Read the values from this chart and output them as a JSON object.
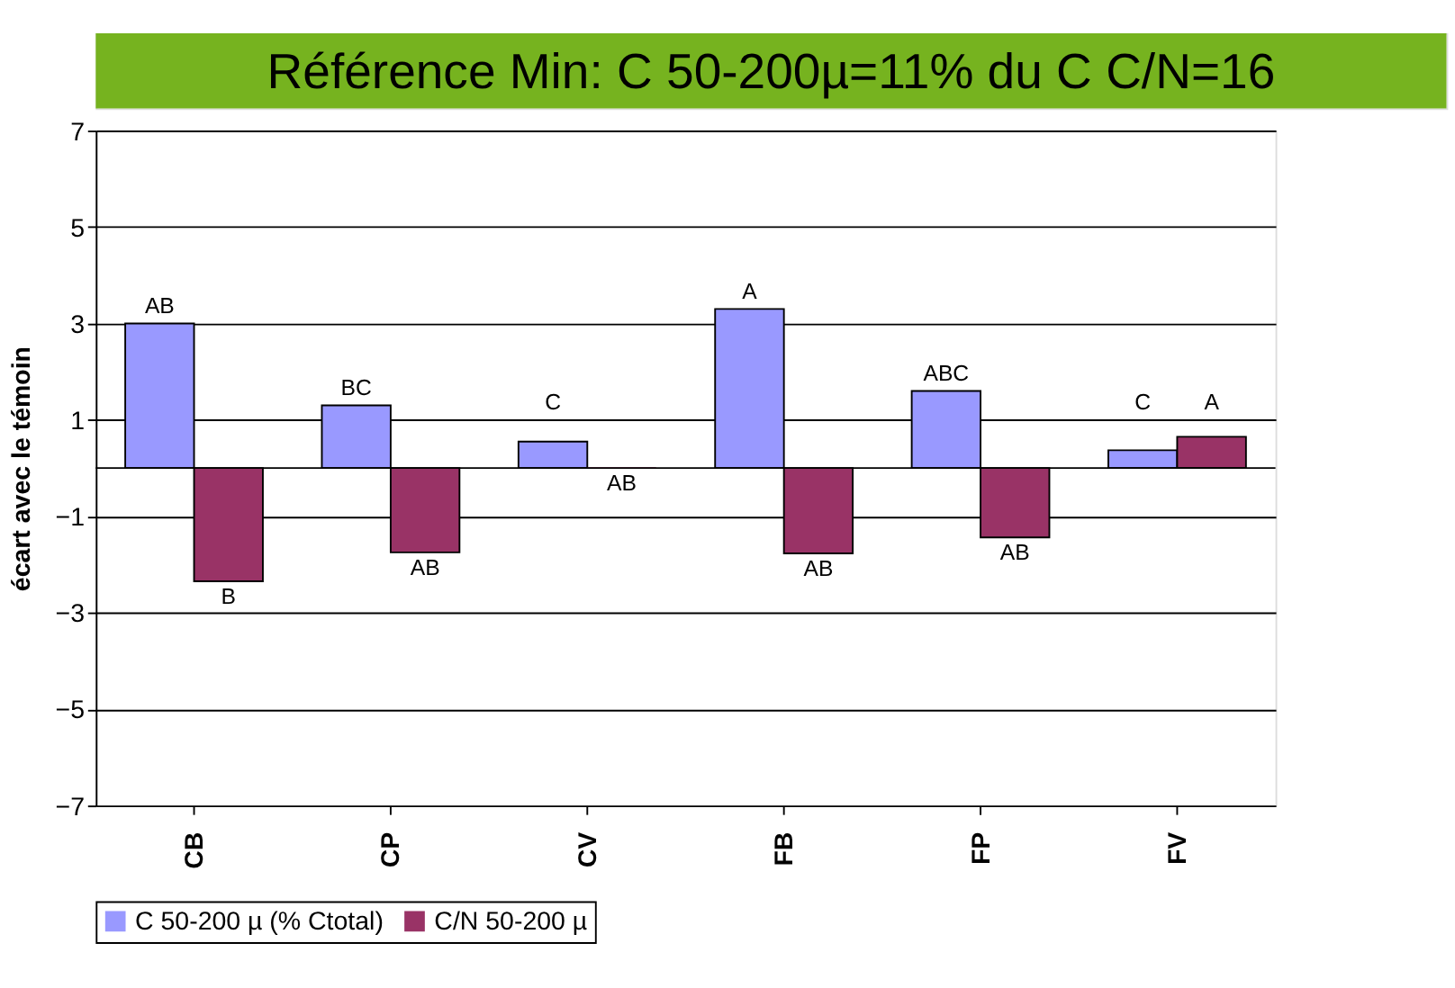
{
  "chart_data": {
    "type": "bar",
    "title": "Référence Min: C 50-200µ=11% du C C/N=16",
    "ylabel": "écart avec le témoin",
    "categories": [
      "CB",
      "CP",
      "CV",
      "FB",
      "FP",
      "FV"
    ],
    "series": [
      {
        "name": "C 50-200 µ (% Ctotal)",
        "color": "#9999ff",
        "values": [
          3.0,
          1.3,
          0.55,
          3.3,
          1.6,
          0.37
        ],
        "value_labels": [
          "AB",
          "BC",
          "C",
          "A",
          "ABC",
          "C"
        ]
      },
      {
        "name": "C/N 50-200 µ",
        "color": "#993366",
        "values": [
          -2.35,
          -1.75,
          0,
          -1.77,
          -1.44,
          0.65
        ],
        "value_labels": [
          "B",
          "AB",
          "AB",
          "AB",
          "AB",
          "A"
        ]
      }
    ],
    "ylim": [
      -7,
      7
    ],
    "yticks": [
      -7,
      -5,
      -3,
      -1,
      1,
      3,
      5,
      7
    ],
    "grid": "y",
    "legend": "bottom"
  }
}
